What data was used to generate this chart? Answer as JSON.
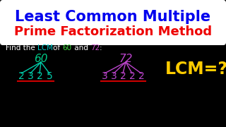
{
  "bg_color": "#000000",
  "title1": "Least Common Multiple",
  "title2": "Prime Factorization Method",
  "title1_color": "#0000ee",
  "title2_color": "#ee0000",
  "title_box_color": "#ffffff",
  "find_segments": [
    [
      "Find the ",
      "#ffffff"
    ],
    [
      "LCM",
      "#00cccc"
    ],
    [
      "of ",
      "#ffffff"
    ],
    [
      "60",
      "#44dd44"
    ],
    [
      " and ",
      "#ffffff"
    ],
    [
      "72",
      "#cc55cc"
    ],
    [
      ":",
      "#ffffff"
    ]
  ],
  "num60": "60",
  "num60_color": "#00cc88",
  "num72": "72",
  "num72_color": "#bb44cc",
  "primes60": [
    "2",
    "3",
    "2",
    "5"
  ],
  "prime60_color": "#00ccaa",
  "primes72": [
    "3",
    "3",
    "2",
    "2",
    "2"
  ],
  "prime72_color": "#bb44cc",
  "lcm_text": "LCM=?",
  "lcm_color": "#ffcc00",
  "underline_color": "#cc0000",
  "tree_line_color60": "#00ccaa",
  "tree_line_color72": "#bb44cc"
}
